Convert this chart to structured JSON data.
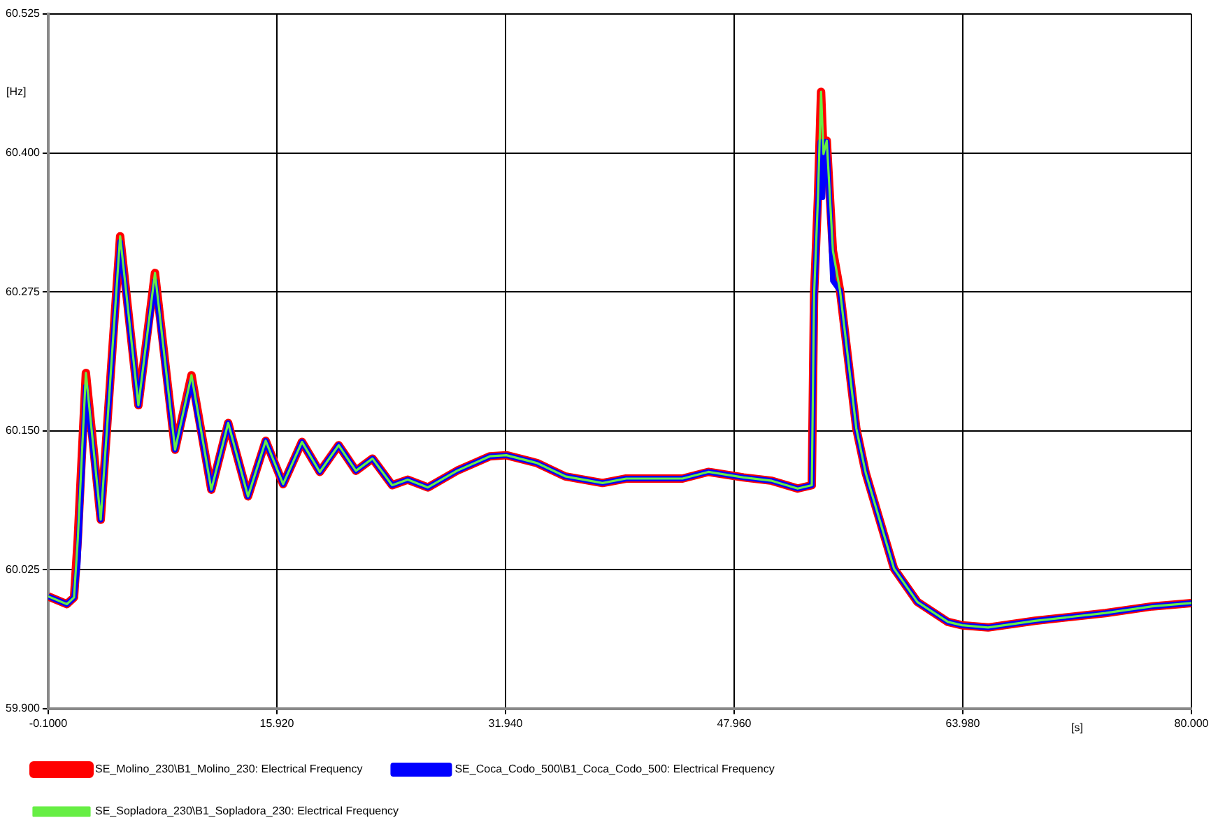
{
  "chart_data": {
    "type": "line",
    "xlabel": "[s]",
    "ylabel": "[Hz]",
    "xlim": [
      -0.1,
      80
    ],
    "xticks": [
      {
        "value": -0.1,
        "label": "-0.1000"
      },
      {
        "value": 15.92,
        "label": "15.920"
      },
      {
        "value": 31.94,
        "label": "31.940"
      },
      {
        "value": 47.96,
        "label": "47.960"
      },
      {
        "value": 63.98,
        "label": "63.980"
      },
      {
        "value": 80,
        "label": "80.000"
      }
    ],
    "ylim": [
      59.9,
      60.525
    ],
    "yticks": [
      {
        "value": 59.9,
        "label": "59.900"
      },
      {
        "value": 60.025,
        "label": "60.025"
      },
      {
        "value": 60.15,
        "label": "60.150"
      },
      {
        "value": 60.275,
        "label": "60.275"
      },
      {
        "value": 60.4,
        "label": "60.400"
      },
      {
        "value": 60.525,
        "label": "60.525"
      }
    ],
    "grid": true,
    "legend": "bottom",
    "line_style": "solid",
    "marker": "none",
    "series": [
      {
        "name": "SE_Molino_230\\B1_Molino_230: Electrical Frequency",
        "color": "#ff0000",
        "x": [
          -0.1,
          1.21,
          1.71,
          1.97,
          2.54,
          3.58,
          4.94,
          6.22,
          7.38,
          8.79,
          9.94,
          11.33,
          12.51,
          13.9,
          15.14,
          16.36,
          17.68,
          18.93,
          20.25,
          21.46,
          22.62,
          24.0,
          25.09,
          26.5,
          28.54,
          30.84,
          32.0,
          34.14,
          36.12,
          38.74,
          40.39,
          44.34,
          46.15,
          48.62,
          50.6,
          52.41,
          53.4,
          53.56,
          53.83,
          54.05,
          54.22,
          54.45,
          54.88,
          55.38,
          56.52,
          57.18,
          59.16,
          60.8,
          62.94,
          63.93,
          65.75,
          69.04,
          73.98,
          77.26,
          80
        ],
        "values": [
          60.001,
          59.994,
          60.0,
          60.052,
          60.202,
          60.07,
          60.325,
          60.173,
          60.292,
          60.133,
          60.2,
          60.097,
          60.157,
          60.091,
          60.141,
          60.102,
          60.14,
          60.113,
          60.137,
          60.114,
          60.125,
          60.101,
          60.106,
          60.099,
          60.114,
          60.127,
          60.128,
          60.121,
          60.109,
          60.103,
          60.107,
          60.107,
          60.113,
          60.108,
          60.105,
          60.098,
          60.101,
          60.272,
          60.359,
          60.455,
          60.399,
          60.411,
          60.312,
          60.276,
          60.152,
          60.112,
          60.026,
          59.996,
          59.978,
          59.975,
          59.973,
          59.979,
          59.986,
          59.992,
          59.995
        ]
      },
      {
        "name": "SE_Coca_Codo_500\\B1_Coca_Codo_500: Electrical Frequency",
        "color": "#0000ff",
        "x": [
          -0.1,
          1.21,
          1.71,
          1.97,
          2.54,
          3.58,
          4.94,
          6.22,
          7.38,
          8.79,
          9.94,
          11.33,
          12.51,
          13.9,
          15.14,
          16.36,
          17.68,
          18.93,
          20.25,
          21.46,
          22.62,
          24.0,
          25.09,
          26.5,
          28.54,
          30.84,
          32.0,
          34.14,
          36.12,
          38.74,
          40.39,
          44.34,
          46.15,
          48.62,
          50.6,
          52.41,
          53.4,
          53.56,
          53.83,
          54.0,
          54.15,
          54.3,
          54.45,
          54.7,
          54.88,
          55.38,
          56.52,
          57.18,
          59.16,
          60.8,
          62.94,
          63.93,
          65.75,
          69.04,
          73.98,
          77.26,
          80
        ],
        "values": [
          60.001,
          59.994,
          60.0,
          60.03,
          60.19,
          60.07,
          60.32,
          60.173,
          60.285,
          60.133,
          60.195,
          60.097,
          60.157,
          60.091,
          60.141,
          60.102,
          60.14,
          60.113,
          60.137,
          60.114,
          60.125,
          60.101,
          60.106,
          60.099,
          60.114,
          60.127,
          60.128,
          60.121,
          60.109,
          60.103,
          60.107,
          60.107,
          60.113,
          60.108,
          60.105,
          60.098,
          60.101,
          60.26,
          60.35,
          60.41,
          60.36,
          60.41,
          60.41,
          60.34,
          60.285,
          60.276,
          60.152,
          60.112,
          60.026,
          59.996,
          59.978,
          59.975,
          59.973,
          59.979,
          59.986,
          59.992,
          59.995
        ]
      },
      {
        "name": "SE_Sopladora_230\\B1_Sopladora_230: Electrical Frequency",
        "color": "#66ee44",
        "x": [
          -0.1,
          1.21,
          1.71,
          1.97,
          2.54,
          3.58,
          4.94,
          6.22,
          7.38,
          8.79,
          9.94,
          11.33,
          12.51,
          13.9,
          15.14,
          16.36,
          17.68,
          18.93,
          20.25,
          21.46,
          22.62,
          24.0,
          25.09,
          26.5,
          28.54,
          30.84,
          32.0,
          34.14,
          36.12,
          38.74,
          40.39,
          44.34,
          46.15,
          48.62,
          50.6,
          52.41,
          53.4,
          53.56,
          53.83,
          54.05,
          54.22,
          54.45,
          54.88,
          55.38,
          56.52,
          57.18,
          59.16,
          60.8,
          62.94,
          63.93,
          65.75,
          69.04,
          73.98,
          77.26,
          80
        ],
        "values": [
          60.001,
          59.994,
          60.0,
          60.052,
          60.202,
          60.07,
          60.325,
          60.173,
          60.292,
          60.133,
          60.2,
          60.097,
          60.157,
          60.091,
          60.141,
          60.102,
          60.14,
          60.113,
          60.137,
          60.114,
          60.125,
          60.101,
          60.106,
          60.099,
          60.114,
          60.127,
          60.128,
          60.121,
          60.109,
          60.103,
          60.107,
          60.107,
          60.113,
          60.108,
          60.105,
          60.098,
          60.101,
          60.272,
          60.359,
          60.455,
          60.399,
          60.411,
          60.312,
          60.276,
          60.152,
          60.112,
          60.026,
          59.996,
          59.978,
          59.975,
          59.973,
          59.979,
          59.986,
          59.992,
          59.995
        ]
      }
    ]
  }
}
